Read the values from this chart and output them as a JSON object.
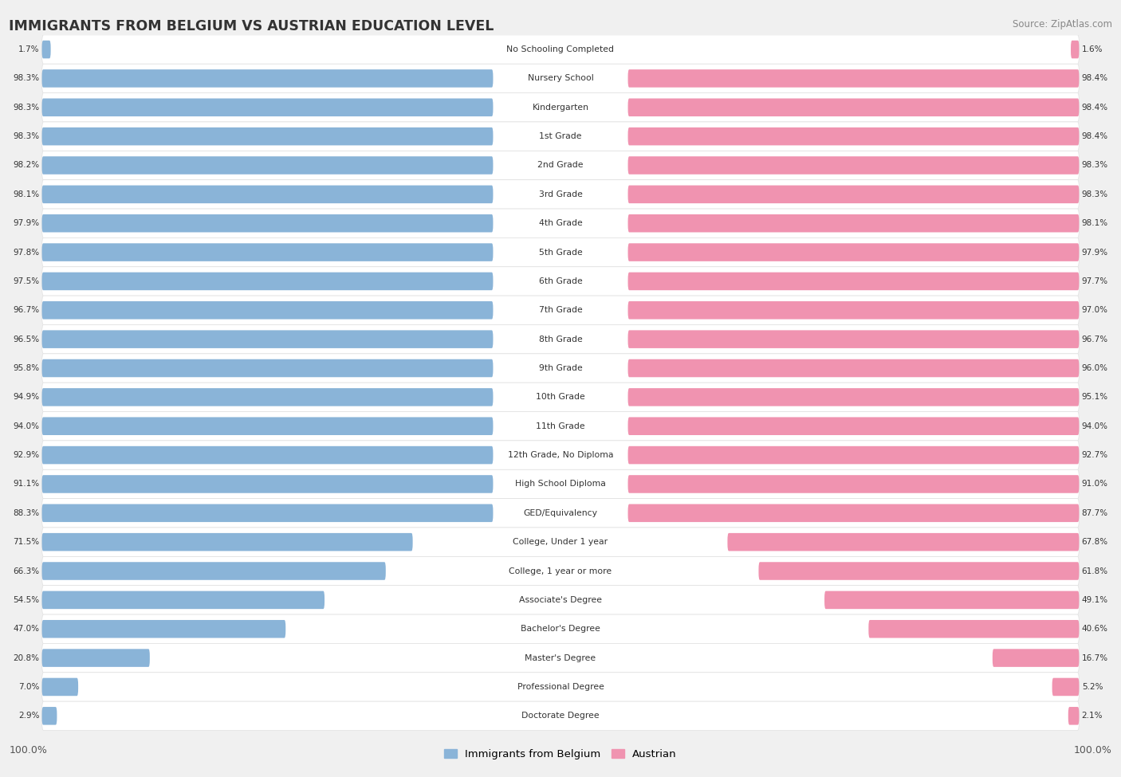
{
  "title": "IMMIGRANTS FROM BELGIUM VS AUSTRIAN EDUCATION LEVEL",
  "source": "Source: ZipAtlas.com",
  "categories": [
    "No Schooling Completed",
    "Nursery School",
    "Kindergarten",
    "1st Grade",
    "2nd Grade",
    "3rd Grade",
    "4th Grade",
    "5th Grade",
    "6th Grade",
    "7th Grade",
    "8th Grade",
    "9th Grade",
    "10th Grade",
    "11th Grade",
    "12th Grade, No Diploma",
    "High School Diploma",
    "GED/Equivalency",
    "College, Under 1 year",
    "College, 1 year or more",
    "Associate's Degree",
    "Bachelor's Degree",
    "Master's Degree",
    "Professional Degree",
    "Doctorate Degree"
  ],
  "belgium_values": [
    1.7,
    98.3,
    98.3,
    98.3,
    98.2,
    98.1,
    97.9,
    97.8,
    97.5,
    96.7,
    96.5,
    95.8,
    94.9,
    94.0,
    92.9,
    91.1,
    88.3,
    71.5,
    66.3,
    54.5,
    47.0,
    20.8,
    7.0,
    2.9
  ],
  "austrian_values": [
    1.6,
    98.4,
    98.4,
    98.4,
    98.3,
    98.3,
    98.1,
    97.9,
    97.7,
    97.0,
    96.7,
    96.0,
    95.1,
    94.0,
    92.7,
    91.0,
    87.7,
    67.8,
    61.8,
    49.1,
    40.6,
    16.7,
    5.2,
    2.1
  ],
  "belgium_color": "#8ab4d8",
  "austrian_color": "#f093b0",
  "background_color": "#f0f0f0",
  "row_color_odd": "#f8f8f8",
  "row_color_even": "#ffffff",
  "legend_label_belgium": "Immigrants from Belgium",
  "legend_label_austrian": "Austrian",
  "axis_label_left": "100.0%",
  "axis_label_right": "100.0%"
}
